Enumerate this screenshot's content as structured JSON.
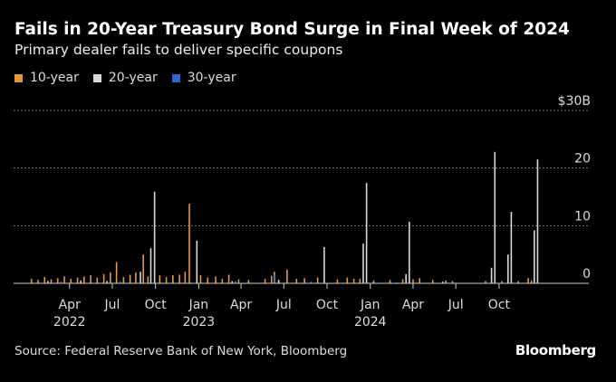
{
  "chart_data": {
    "type": "bar",
    "title": "Fails in 20-Year Treasury Bond Surge in Final Week of 2024",
    "subtitle": "Primary dealer fails to deliver specific coupons",
    "xlabel": "",
    "ylabel": "$B",
    "ylim": [
      0,
      30
    ],
    "y_ticks": [
      {
        "value": 30,
        "label": "$30B"
      },
      {
        "value": 20,
        "label": "20"
      },
      {
        "value": 10,
        "label": "10"
      },
      {
        "value": 0,
        "label": "0"
      }
    ],
    "x_range": [
      "2021-12-03",
      "2025-04-10"
    ],
    "x_ticks": [
      {
        "date": "2022-04-01",
        "label": "Apr",
        "year": "2022"
      },
      {
        "date": "2022-07-01",
        "label": "Jul",
        "year": ""
      },
      {
        "date": "2022-10-01",
        "label": "Oct",
        "year": ""
      },
      {
        "date": "2023-01-01",
        "label": "Jan",
        "year": "2023"
      },
      {
        "date": "2023-04-01",
        "label": "Apr",
        "year": ""
      },
      {
        "date": "2023-07-01",
        "label": "Jul",
        "year": ""
      },
      {
        "date": "2023-10-01",
        "label": "Oct",
        "year": ""
      },
      {
        "date": "2024-01-01",
        "label": "Jan",
        "year": "2024"
      },
      {
        "date": "2024-04-01",
        "label": "Apr",
        "year": ""
      },
      {
        "date": "2024-07-01",
        "label": "Jul",
        "year": ""
      },
      {
        "date": "2024-10-01",
        "label": "Oct",
        "year": ""
      }
    ],
    "grid": true,
    "legend_position": "top-left",
    "series": [
      {
        "name": "10-year",
        "color": "#e8963a",
        "points": [
          [
            "2022-01-10",
            0.8
          ],
          [
            "2022-01-24",
            0.6
          ],
          [
            "2022-02-07",
            1.1
          ],
          [
            "2022-02-21",
            0.7
          ],
          [
            "2022-03-07",
            0.9
          ],
          [
            "2022-03-21",
            1.2
          ],
          [
            "2022-04-04",
            0.8
          ],
          [
            "2022-04-18",
            1.0
          ],
          [
            "2022-05-02",
            1.2
          ],
          [
            "2022-05-16",
            1.4
          ],
          [
            "2022-05-30",
            1.0
          ],
          [
            "2022-06-13",
            1.6
          ],
          [
            "2022-06-27",
            1.9
          ],
          [
            "2022-07-10",
            3.7
          ],
          [
            "2022-07-25",
            1.1
          ],
          [
            "2022-08-08",
            1.5
          ],
          [
            "2022-08-20",
            1.9
          ],
          [
            "2022-09-05",
            5.0
          ],
          [
            "2022-09-15",
            1.2
          ],
          [
            "2022-10-10",
            1.4
          ],
          [
            "2022-10-24",
            1.1
          ],
          [
            "2022-11-07",
            1.4
          ],
          [
            "2022-11-21",
            1.5
          ],
          [
            "2022-12-03",
            2.0
          ],
          [
            "2022-12-12",
            13.8
          ],
          [
            "2023-01-05",
            1.4
          ],
          [
            "2023-01-20",
            1.0
          ],
          [
            "2023-02-06",
            1.2
          ],
          [
            "2023-02-20",
            0.8
          ],
          [
            "2023-03-06",
            1.5
          ],
          [
            "2023-03-27",
            0.7
          ],
          [
            "2023-04-17",
            0.6
          ],
          [
            "2023-05-22",
            0.8
          ],
          [
            "2023-06-05",
            1.3
          ],
          [
            "2023-06-11",
            2.0
          ],
          [
            "2023-07-08",
            2.4
          ],
          [
            "2023-07-28",
            0.8
          ],
          [
            "2023-08-14",
            0.9
          ],
          [
            "2023-09-11",
            1.0
          ],
          [
            "2023-10-23",
            0.7
          ],
          [
            "2023-11-13",
            1.0
          ],
          [
            "2023-11-27",
            0.8
          ],
          [
            "2023-12-10",
            0.8
          ],
          [
            "2024-01-08",
            0.5
          ],
          [
            "2024-02-12",
            0.6
          ],
          [
            "2024-03-10",
            0.7
          ],
          [
            "2024-04-01",
            0.7
          ],
          [
            "2024-04-15",
            0.9
          ],
          [
            "2024-05-13",
            0.6
          ],
          [
            "2024-06-10",
            0.5
          ],
          [
            "2024-06-24",
            0.4
          ],
          [
            "2024-09-02",
            0.4
          ],
          [
            "2024-10-07",
            0.4
          ],
          [
            "2024-11-11",
            0.4
          ],
          [
            "2024-12-02",
            0.9
          ],
          [
            "2024-12-09",
            0.5
          ]
        ]
      },
      {
        "name": "20-year",
        "color": "#d9d9d9",
        "points": [
          [
            "2022-02-14",
            0.4
          ],
          [
            "2022-04-25",
            0.5
          ],
          [
            "2022-06-20",
            0.4
          ],
          [
            "2022-08-30",
            2.0
          ],
          [
            "2022-09-21",
            6.1
          ],
          [
            "2022-09-29",
            15.9
          ],
          [
            "2022-12-28",
            7.4
          ],
          [
            "2023-03-13",
            0.4
          ],
          [
            "2023-06-20",
            0.6
          ],
          [
            "2023-09-25",
            6.3
          ],
          [
            "2023-12-17",
            6.9
          ],
          [
            "2023-12-24",
            17.4
          ],
          [
            "2024-03-17",
            1.6
          ],
          [
            "2024-03-24",
            10.7
          ],
          [
            "2024-06-03",
            0.3
          ],
          [
            "2024-09-15",
            2.7
          ],
          [
            "2024-09-22",
            22.8
          ],
          [
            "2024-10-20",
            5.0
          ],
          [
            "2024-10-27",
            12.4
          ],
          [
            "2024-12-15",
            9.2
          ],
          [
            "2024-12-22",
            21.5
          ]
        ]
      },
      {
        "name": "30-year",
        "color": "#2f66d0",
        "points": [
          [
            "2022-03-14",
            0.3
          ],
          [
            "2022-07-18",
            0.3
          ],
          [
            "2023-03-20",
            0.4
          ],
          [
            "2023-06-12",
            1.5
          ],
          [
            "2023-08-28",
            0.3
          ],
          [
            "2024-02-26",
            0.2
          ]
        ]
      }
    ]
  },
  "source": "Source: Federal Reserve Bank of New York, Bloomberg",
  "logo": "Bloomberg"
}
